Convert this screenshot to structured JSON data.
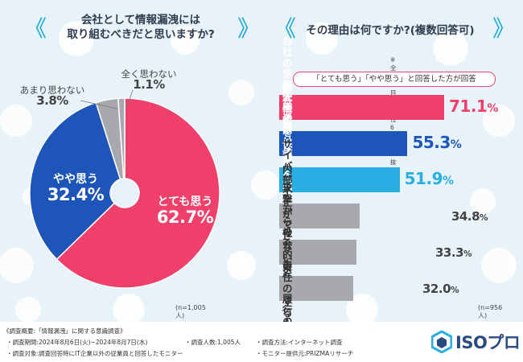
{
  "colors": {
    "pink": "#ef3f6b",
    "blue": "#1d55b8",
    "cyan": "#29aee3",
    "gray": "#a7a9ac",
    "dark_text": "#333333",
    "logo_blue": "#2a4a80",
    "background": "#e7f3f8",
    "bubble": "#ffffff"
  },
  "left_panel": {
    "question_line1": "会社として情報漏洩には",
    "question_line2": "取り組むべきだと思いますか?",
    "sample_note": "(n=1,005人)"
  },
  "right_panel": {
    "question": "その理由は何ですか?(複数回答可)",
    "extract_note": "※全8項目中上位6項目を抜粋",
    "answer_condition": "「とても思う」「やや思う」と回答した方が回答",
    "sample_note": "(n=956人)"
  },
  "chart_data": [
    {
      "type": "pie",
      "title": "会社として情報漏洩には取り組むべきだと思いますか?",
      "style": "donut",
      "n": "1,005人",
      "slices": [
        {
          "label": "とても思う",
          "value": 62.7,
          "display": "62.7%",
          "color": "#ef3f6b"
        },
        {
          "label": "やや思う",
          "value": 32.4,
          "display": "32.4%",
          "color": "#1d55b8"
        },
        {
          "label": "あまり思わない",
          "value": 3.8,
          "display": "3.8%",
          "color": "#a7a9ac"
        },
        {
          "label": "全く思わない",
          "value": 1.1,
          "display": "1.1%",
          "color": "#a7a9ac"
        }
      ]
    },
    {
      "type": "bar",
      "orientation": "horizontal",
      "title": "その理由は何ですか?(複数回答可)",
      "n": "956人",
      "xlim": [
        0,
        100
      ],
      "categories": [
        "会社の信頼失墜の\n予防のため",
        "顧客情報を保護するため",
        "法的リスクを回避するため",
        "サイバー攻撃からの防御のため",
        "内部不正ができないように\nするため",
        "社会的責任の履行のため"
      ],
      "values": [
        71.1,
        55.3,
        51.9,
        34.8,
        33.3,
        32.0
      ],
      "value_numbers": [
        "71.1",
        "55.3",
        "51.9",
        "34.8",
        "33.3",
        "32.0"
      ],
      "unit": "%",
      "bar_colors": [
        "#ef3f6b",
        "#1d55b8",
        "#29aee3",
        "#a7a9ac",
        "#a7a9ac",
        "#a7a9ac"
      ]
    }
  ],
  "footer": {
    "title": "《調査概要:「情報漏洩」に関する意識調査》",
    "period": "・調査期間:2024年8月6日(火)~2024年8月7日(水)",
    "count": "・調査人数:1,005人",
    "method": "・調査方法:インターネット調査",
    "target": "・調査対象:調査回答時にIT企業以外の従業員と回答したモニター",
    "provider": "・モニター提供元:PRIZMAリサーチ"
  },
  "logo": {
    "text": "ISOプロ",
    "icon": "hexagon-logo-icon"
  }
}
